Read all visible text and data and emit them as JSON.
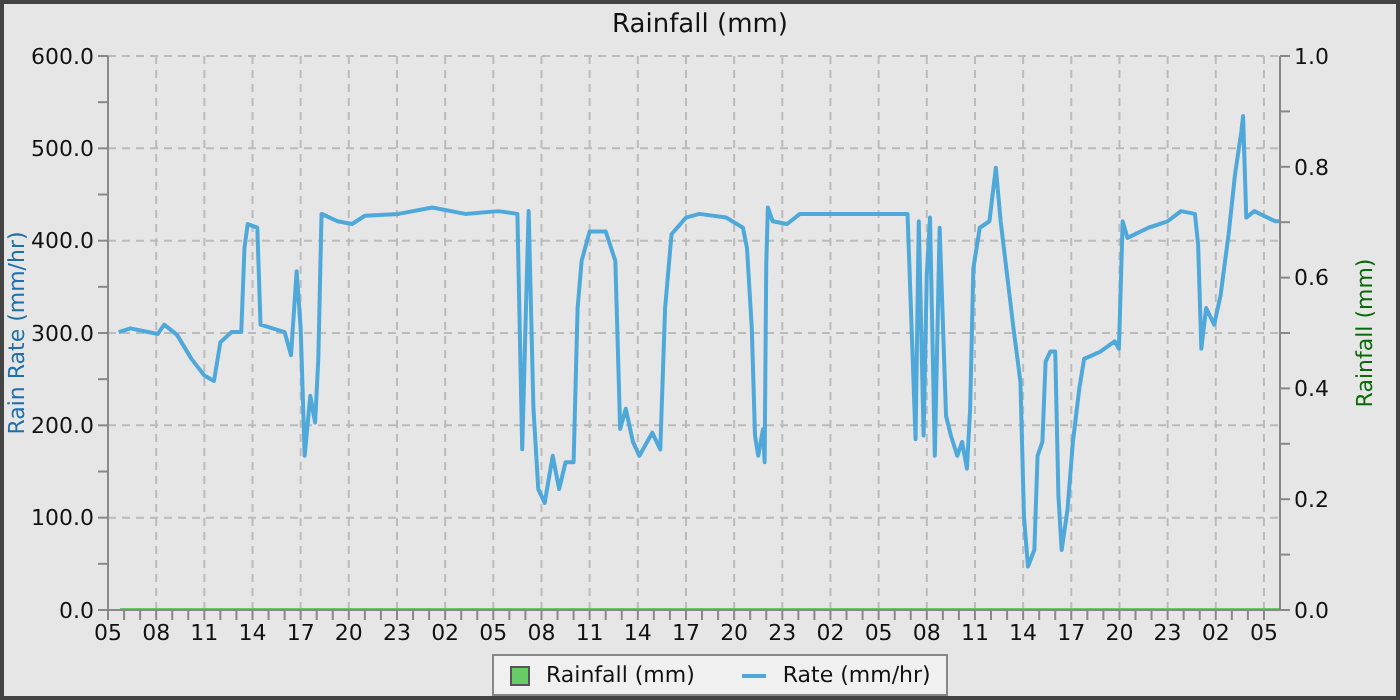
{
  "chart_data": {
    "type": "line",
    "title": "Rainfall (mm)",
    "ylabel": "Rain Rate (mm/hr)",
    "y2label": "Rainfall (mm)",
    "xlim": [
      "--01-01T05:00",
      "--01-04T06:00"
    ],
    "xticks": [
      {
        "value": "--01-01T05:00",
        "label": "05"
      },
      {
        "value": "--01-01T06:00",
        "label": null
      },
      {
        "value": "--01-01T07:00",
        "label": null
      },
      {
        "value": "--01-01T08:00",
        "label": "08"
      },
      {
        "value": "--01-01T09:00",
        "label": null
      },
      {
        "value": "--01-01T10:00",
        "label": null
      },
      {
        "value": "--01-01T11:00",
        "label": "11"
      },
      {
        "value": "--01-01T12:00",
        "label": null
      },
      {
        "value": "--01-01T13:00",
        "label": null
      },
      {
        "value": "--01-01T14:00",
        "label": "14"
      },
      {
        "value": "--01-01T15:00",
        "label": null
      },
      {
        "value": "--01-01T16:00",
        "label": null
      },
      {
        "value": "--01-01T17:00",
        "label": "17"
      },
      {
        "value": "--01-01T18:00",
        "label": null
      },
      {
        "value": "--01-01T19:00",
        "label": null
      },
      {
        "value": "--01-01T20:00",
        "label": "20"
      },
      {
        "value": "--01-01T21:00",
        "label": null
      },
      {
        "value": "--01-01T22:00",
        "label": null
      },
      {
        "value": "--01-01T23:00",
        "label": "23"
      },
      {
        "value": "--01-02T00:00",
        "label": null
      },
      {
        "value": "--01-02T01:00",
        "label": null
      },
      {
        "value": "--01-02T02:00",
        "label": "02"
      },
      {
        "value": "--01-02T03:00",
        "label": null
      },
      {
        "value": "--01-02T04:00",
        "label": null
      },
      {
        "value": "--01-02T05:00",
        "label": "05"
      },
      {
        "value": "--01-02T06:00",
        "label": null
      },
      {
        "value": "--01-02T07:00",
        "label": null
      },
      {
        "value": "--01-02T08:00",
        "label": "08"
      },
      {
        "value": "--01-02T09:00",
        "label": null
      },
      {
        "value": "--01-02T10:00",
        "label": null
      },
      {
        "value": "--01-02T11:00",
        "label": "11"
      },
      {
        "value": "--01-02T12:00",
        "label": null
      },
      {
        "value": "--01-02T13:00",
        "label": null
      },
      {
        "value": "--01-02T14:00",
        "label": "14"
      },
      {
        "value": "--01-02T15:00",
        "label": null
      },
      {
        "value": "--01-02T16:00",
        "label": null
      },
      {
        "value": "--01-02T17:00",
        "label": "17"
      },
      {
        "value": "--01-02T18:00",
        "label": null
      },
      {
        "value": "--01-02T19:00",
        "label": null
      },
      {
        "value": "--01-02T20:00",
        "label": "20"
      },
      {
        "value": "--01-02T21:00",
        "label": null
      },
      {
        "value": "--01-02T22:00",
        "label": null
      },
      {
        "value": "--01-02T23:00",
        "label": "23"
      },
      {
        "value": "--01-03T00:00",
        "label": null
      },
      {
        "value": "--01-03T01:00",
        "label": null
      },
      {
        "value": "--01-03T02:00",
        "label": "02"
      },
      {
        "value": "--01-03T03:00",
        "label": null
      },
      {
        "value": "--01-03T04:00",
        "label": null
      },
      {
        "value": "--01-03T05:00",
        "label": "05"
      },
      {
        "value": "--01-03T06:00",
        "label": null
      },
      {
        "value": "--01-03T07:00",
        "label": null
      },
      {
        "value": "--01-03T08:00",
        "label": "08"
      },
      {
        "value": "--01-03T09:00",
        "label": null
      },
      {
        "value": "--01-03T10:00",
        "label": null
      },
      {
        "value": "--01-03T11:00",
        "label": "11"
      },
      {
        "value": "--01-03T12:00",
        "label": null
      },
      {
        "value": "--01-03T13:00",
        "label": null
      },
      {
        "value": "--01-03T14:00",
        "label": "14"
      },
      {
        "value": "--01-03T15:00",
        "label": null
      },
      {
        "value": "--01-03T16:00",
        "label": null
      },
      {
        "value": "--01-03T17:00",
        "label": "17"
      },
      {
        "value": "--01-03T18:00",
        "label": null
      },
      {
        "value": "--01-03T19:00",
        "label": null
      },
      {
        "value": "--01-03T20:00",
        "label": "20"
      },
      {
        "value": "--01-03T21:00",
        "label": null
      },
      {
        "value": "--01-03T22:00",
        "label": null
      },
      {
        "value": "--01-03T23:00",
        "label": "23"
      },
      {
        "value": "--01-04T00:00",
        "label": null
      },
      {
        "value": "--01-04T01:00",
        "label": null
      },
      {
        "value": "--01-04T02:00",
        "label": "02"
      },
      {
        "value": "--01-04T03:00",
        "label": null
      },
      {
        "value": "--01-04T04:00",
        "label": null
      },
      {
        "value": "--01-04T05:00",
        "label": "05"
      }
    ],
    "ylim": [
      0,
      600
    ],
    "yticks": [
      {
        "value": 0,
        "label": "0.0"
      },
      {
        "value": 50,
        "label": null
      },
      {
        "value": 100,
        "label": "100.0"
      },
      {
        "value": 150,
        "label": null
      },
      {
        "value": 200,
        "label": "200.0"
      },
      {
        "value": 250,
        "label": null
      },
      {
        "value": 300,
        "label": "300.0"
      },
      {
        "value": 350,
        "label": null
      },
      {
        "value": 400,
        "label": "400.0"
      },
      {
        "value": 450,
        "label": null
      },
      {
        "value": 500,
        "label": "500.0"
      },
      {
        "value": 550,
        "label": null
      },
      {
        "value": 600,
        "label": "600.0"
      }
    ],
    "y2lim": [
      0,
      1
    ],
    "y2ticks": [
      {
        "value": 0,
        "label": "0.0"
      },
      {
        "value": 0.1,
        "label": null
      },
      {
        "value": 0.2,
        "label": "0.2"
      },
      {
        "value": 0.3,
        "label": null
      },
      {
        "value": 0.4,
        "label": "0.4"
      },
      {
        "value": 0.5,
        "label": null
      },
      {
        "value": 0.6,
        "label": "0.6"
      },
      {
        "value": 0.7,
        "label": null
      },
      {
        "value": 0.8,
        "label": "0.8"
      },
      {
        "value": 0.9,
        "label": null
      },
      {
        "value": 1,
        "label": "1.0"
      }
    ],
    "grid": true,
    "legend": "bottom",
    "marker": "none",
    "line_style": "solid",
    "series": [
      {
        "name": "Rate (mm/hr)",
        "color": "#4ea8da",
        "x": [
          "--01-01T05:40",
          "--01-01T06:24",
          "--01-01T08:06",
          "--01-01T08:30",
          "--01-01T09:18",
          "--01-01T10:12",
          "--01-01T11:00",
          "--01-01T11:36",
          "--01-01T12:00",
          "--01-01T12:42",
          "--01-01T13:18",
          "--01-01T13:30",
          "--01-01T13:42",
          "--01-01T14:18",
          "--01-01T14:30",
          "--01-01T16:00",
          "--01-01T16:24",
          "--01-01T16:45",
          "--01-01T17:00",
          "--01-01T17:15",
          "--01-01T17:36",
          "--01-01T17:54",
          "--01-01T18:06",
          "--01-01T18:18",
          "--01-01T19:18",
          "--01-01T20:12",
          "--01-01T21:00",
          "--01-01T23:06",
          "--01-02T01:12",
          "--01-02T03:15",
          "--01-02T05:18",
          "--01-02T06:30",
          "--01-02T06:48",
          "--01-02T07:00",
          "--01-02T07:12",
          "--01-02T07:30",
          "--01-02T07:48",
          "--01-02T08:12",
          "--01-02T08:42",
          "--01-02T09:06",
          "--01-02T09:30",
          "--01-02T10:00",
          "--01-02T10:15",
          "--01-02T10:30",
          "--01-02T11:00",
          "--01-02T12:00",
          "--01-02T12:36",
          "--01-02T12:54",
          "--01-02T13:15",
          "--01-02T13:42",
          "--01-02T14:06",
          "--01-02T14:54",
          "--01-02T15:24",
          "--01-02T15:42",
          "--01-02T16:06",
          "--01-02T17:00",
          "--01-02T17:50",
          "--01-02T19:30",
          "--01-02T20:33",
          "--01-02T20:48",
          "--01-02T21:06",
          "--01-02T21:18",
          "--01-02T21:30",
          "--01-02T21:48",
          "--01-02T21:54",
          "--01-02T22:00",
          "--01-02T22:06",
          "--01-02T22:24",
          "--01-02T23:18",
          "--01-03T00:06",
          "--01-03T02:12",
          "--01-03T04:18",
          "--01-03T06:48",
          "--01-03T07:06",
          "--01-03T07:18",
          "--01-03T07:30",
          "--01-03T07:48",
          "--01-03T08:00",
          "--01-03T08:12",
          "--01-03T08:30",
          "--01-03T08:48",
          "--01-03T09:12",
          "--01-03T09:30",
          "--01-03T09:54",
          "--01-03T10:12",
          "--01-03T10:30",
          "--01-03T10:42",
          "--01-03T10:54",
          "--01-03T11:18",
          "--01-03T11:54",
          "--01-03T12:18",
          "--01-03T12:36",
          "--01-03T13:00",
          "--01-03T13:24",
          "--01-03T13:50",
          "--01-03T14:03",
          "--01-03T14:18",
          "--01-03T14:42",
          "--01-03T14:54",
          "--01-03T15:12",
          "--01-03T15:24",
          "--01-03T15:42",
          "--01-03T16:00",
          "--01-03T16:12",
          "--01-03T16:24",
          "--01-03T16:46",
          "--01-03T17:06",
          "--01-03T17:30",
          "--01-03T17:48",
          "--01-03T18:50",
          "--01-03T19:42",
          "--01-03T19:58",
          "--01-03T20:12",
          "--01-03T20:30",
          "--01-03T21:48",
          "--01-03T23:00",
          "--01-03T23:50",
          "--01-04T00:42",
          "--01-04T00:54",
          "--01-04T01:06",
          "--01-04T01:24",
          "--01-04T01:54",
          "--01-04T02:18",
          "--01-04T02:48",
          "--01-04T03:12",
          "--01-04T03:36",
          "--01-04T03:42",
          "--01-04T03:54",
          "--01-04T04:24",
          "--01-04T05:42",
          "--01-04T06:00"
        ],
        "values": [
          301,
          305,
          299,
          309,
          298,
          272,
          254,
          248,
          290,
          301,
          301,
          392,
          418,
          414,
          309,
          301,
          276,
          367,
          305,
          167,
          232,
          203,
          272,
          429,
          421,
          418,
          427,
          429,
          436,
          429,
          432,
          429,
          174,
          305,
          432,
          218,
          131,
          116,
          167,
          131,
          160,
          160,
          327,
          378,
          410,
          410,
          378,
          196,
          218,
          182,
          167,
          192,
          174,
          327,
          407,
          425,
          429,
          425,
          414,
          392,
          305,
          189,
          167,
          196,
          160,
          374,
          436,
          421,
          418,
          429,
          429,
          429,
          429,
          283,
          185,
          421,
          189,
          363,
          425,
          167,
          414,
          210,
          189,
          167,
          182,
          153,
          218,
          370,
          414,
          421,
          479,
          421,
          363,
          305,
          247,
          102,
          47,
          65,
          167,
          182,
          269,
          280,
          280,
          123,
          65,
          109,
          182,
          240,
          272,
          280,
          291,
          283,
          421,
          403,
          414,
          421,
          432,
          429,
          396,
          283,
          327,
          309,
          341,
          407,
          472,
          519,
          535,
          425,
          432,
          421,
          421
        ]
      },
      {
        "name": "Rainfall (mm)",
        "axis": "y2",
        "color": "#66cc66",
        "x": [
          "--01-01T05:45",
          "--01-01T20:00",
          "--01-02T16:00",
          "--01-03T12:00",
          "--01-04T06:00"
        ],
        "values": [
          0,
          0,
          0,
          0,
          0
        ]
      }
    ]
  }
}
